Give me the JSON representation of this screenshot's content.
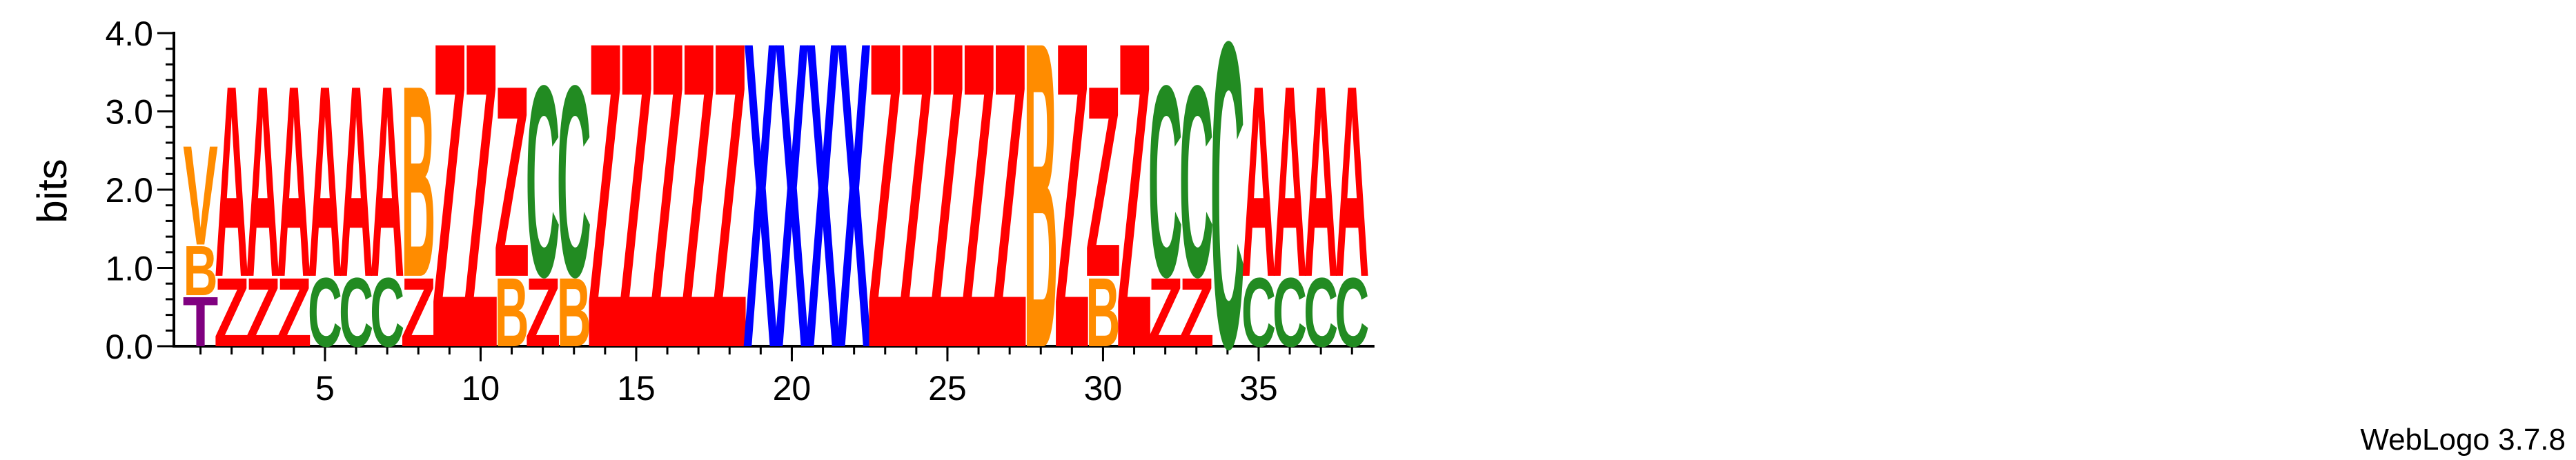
{
  "chart_data": {
    "type": "sequence-logo",
    "ylabel": "bits",
    "ylim": [
      0,
      4.0
    ],
    "y_ticks": [
      "0.0",
      "1.0",
      "2.0",
      "3.0",
      "4.0"
    ],
    "x_ticks": [
      "5",
      "10",
      "15",
      "20",
      "25",
      "30",
      "35"
    ],
    "x_tick_positions": [
      5,
      10,
      15,
      20,
      25,
      30,
      35
    ],
    "footer": "WebLogo 3.7.8",
    "colors": {
      "A": "#ff0000",
      "Z": "#ff0000",
      "X": "#0000ff",
      "C": "#228b22",
      "B": "#ff8c00",
      "V": "#ff8c00",
      "T": "#800080"
    },
    "positions": [
      {
        "pos": 1,
        "stack": [
          {
            "letter": "T",
            "bits": 0.65
          },
          {
            "letter": "B",
            "bits": 0.65
          },
          {
            "letter": "V",
            "bits": 1.3
          }
        ]
      },
      {
        "pos": 2,
        "stack": [
          {
            "letter": "Z",
            "bits": 0.9
          },
          {
            "letter": "A",
            "bits": 2.5
          }
        ]
      },
      {
        "pos": 3,
        "stack": [
          {
            "letter": "Z",
            "bits": 0.9
          },
          {
            "letter": "A",
            "bits": 2.5
          }
        ]
      },
      {
        "pos": 4,
        "stack": [
          {
            "letter": "Z",
            "bits": 0.9
          },
          {
            "letter": "A",
            "bits": 2.5
          }
        ]
      },
      {
        "pos": 5,
        "stack": [
          {
            "letter": "C",
            "bits": 0.9
          },
          {
            "letter": "A",
            "bits": 2.5
          }
        ]
      },
      {
        "pos": 6,
        "stack": [
          {
            "letter": "C",
            "bits": 0.9
          },
          {
            "letter": "A",
            "bits": 2.5
          }
        ]
      },
      {
        "pos": 7,
        "stack": [
          {
            "letter": "C",
            "bits": 0.9
          },
          {
            "letter": "A",
            "bits": 2.5
          }
        ]
      },
      {
        "pos": 8,
        "stack": [
          {
            "letter": "Z",
            "bits": 0.9
          },
          {
            "letter": "B",
            "bits": 2.5
          }
        ]
      },
      {
        "pos": 9,
        "stack": [
          {
            "letter": "Z",
            "bits": 4.0
          }
        ]
      },
      {
        "pos": 10,
        "stack": [
          {
            "letter": "Z",
            "bits": 4.0
          }
        ]
      },
      {
        "pos": 11,
        "stack": [
          {
            "letter": "B",
            "bits": 0.9
          },
          {
            "letter": "Z",
            "bits": 2.5
          }
        ]
      },
      {
        "pos": 12,
        "stack": [
          {
            "letter": "Z",
            "bits": 0.9
          },
          {
            "letter": "C",
            "bits": 2.5
          }
        ]
      },
      {
        "pos": 13,
        "stack": [
          {
            "letter": "B",
            "bits": 0.9
          },
          {
            "letter": "C",
            "bits": 2.5
          }
        ]
      },
      {
        "pos": 14,
        "stack": [
          {
            "letter": "Z",
            "bits": 4.0
          }
        ]
      },
      {
        "pos": 15,
        "stack": [
          {
            "letter": "Z",
            "bits": 4.0
          }
        ]
      },
      {
        "pos": 16,
        "stack": [
          {
            "letter": "Z",
            "bits": 4.0
          }
        ]
      },
      {
        "pos": 17,
        "stack": [
          {
            "letter": "Z",
            "bits": 4.0
          }
        ]
      },
      {
        "pos": 18,
        "stack": [
          {
            "letter": "Z",
            "bits": 4.0
          }
        ]
      },
      {
        "pos": 19,
        "stack": [
          {
            "letter": "X",
            "bits": 4.0
          }
        ]
      },
      {
        "pos": 20,
        "stack": [
          {
            "letter": "X",
            "bits": 4.0
          }
        ]
      },
      {
        "pos": 21,
        "stack": [
          {
            "letter": "X",
            "bits": 4.0
          }
        ]
      },
      {
        "pos": 22,
        "stack": [
          {
            "letter": "X",
            "bits": 4.0
          }
        ]
      },
      {
        "pos": 23,
        "stack": [
          {
            "letter": "Z",
            "bits": 4.0
          }
        ]
      },
      {
        "pos": 24,
        "stack": [
          {
            "letter": "Z",
            "bits": 4.0
          }
        ]
      },
      {
        "pos": 25,
        "stack": [
          {
            "letter": "Z",
            "bits": 4.0
          }
        ]
      },
      {
        "pos": 26,
        "stack": [
          {
            "letter": "Z",
            "bits": 4.0
          }
        ]
      },
      {
        "pos": 27,
        "stack": [
          {
            "letter": "Z",
            "bits": 4.0
          }
        ]
      },
      {
        "pos": 28,
        "stack": [
          {
            "letter": "B",
            "bits": 4.0
          }
        ]
      },
      {
        "pos": 29,
        "stack": [
          {
            "letter": "Z",
            "bits": 4.0
          }
        ]
      },
      {
        "pos": 30,
        "stack": [
          {
            "letter": "B",
            "bits": 0.9
          },
          {
            "letter": "Z",
            "bits": 2.5
          }
        ]
      },
      {
        "pos": 31,
        "stack": [
          {
            "letter": "Z",
            "bits": 4.0
          }
        ]
      },
      {
        "pos": 32,
        "stack": [
          {
            "letter": "Z",
            "bits": 0.9
          },
          {
            "letter": "C",
            "bits": 2.5
          }
        ]
      },
      {
        "pos": 33,
        "stack": [
          {
            "letter": "Z",
            "bits": 0.9
          },
          {
            "letter": "C",
            "bits": 2.5
          }
        ]
      },
      {
        "pos": 34,
        "stack": [
          {
            "letter": "C",
            "bits": 4.0
          }
        ]
      },
      {
        "pos": 35,
        "stack": [
          {
            "letter": "C",
            "bits": 0.9
          },
          {
            "letter": "A",
            "bits": 2.5
          }
        ]
      },
      {
        "pos": 36,
        "stack": [
          {
            "letter": "C",
            "bits": 0.9
          },
          {
            "letter": "A",
            "bits": 2.5
          }
        ]
      },
      {
        "pos": 37,
        "stack": [
          {
            "letter": "C",
            "bits": 0.9
          },
          {
            "letter": "A",
            "bits": 2.5
          }
        ]
      },
      {
        "pos": 38,
        "stack": [
          {
            "letter": "C",
            "bits": 0.9
          },
          {
            "letter": "A",
            "bits": 2.5
          }
        ]
      }
    ]
  }
}
